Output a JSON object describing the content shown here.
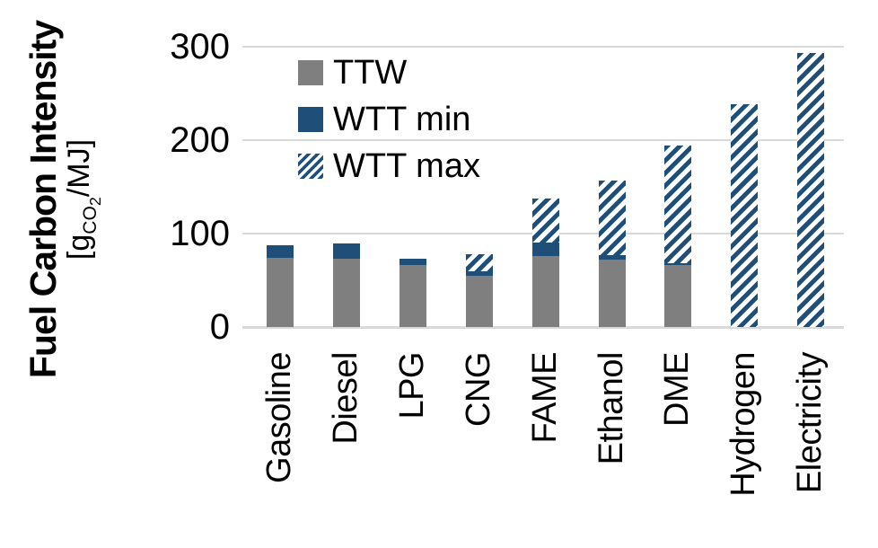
{
  "y_axis": {
    "title": "Fuel Carbon Intensity",
    "units_prefix": "[g",
    "units_sub": "CO",
    "units_sub2": "2",
    "units_suffix": "/MJ]"
  },
  "legend": {
    "items": [
      {
        "label": "TTW",
        "swatch": "solid-gray",
        "swatch_icon": "gray-square-icon"
      },
      {
        "label": "WTT min",
        "swatch": "solid-navy",
        "swatch_icon": "navy-square-icon"
      },
      {
        "label": "WTT max",
        "swatch": "hatched-navy",
        "swatch_icon": "navy-hatched-square-icon"
      }
    ]
  },
  "colors": {
    "ttw_gray": "#7F7F7F",
    "wtt_navy": "#1F4E79",
    "gridline": "#D9D9D9",
    "background": "#FFFFFF",
    "text": "#000000"
  },
  "chart_data": {
    "type": "bar",
    "stacked": true,
    "title": "",
    "xlabel": "",
    "ylabel": "Fuel Carbon Intensity [gCO2/MJ]",
    "ylim": [
      0,
      300
    ],
    "yticks": [
      0,
      100,
      200,
      300
    ],
    "grid": true,
    "legend_position": "upper-left",
    "categories": [
      "Gasoline",
      "Diesel",
      "LPG",
      "CNG",
      "FAME",
      "Ethanol",
      "DME",
      "Hydrogen",
      "Electricity"
    ],
    "series": [
      {
        "name": "TTW",
        "values": [
          74,
          73,
          66,
          55,
          76,
          72,
          66,
          0,
          0
        ]
      },
      {
        "name": "WTT min",
        "values": [
          14,
          16,
          7,
          5,
          14,
          5,
          2,
          0,
          0
        ]
      },
      {
        "name": "WTT max",
        "values": [
          0,
          0,
          0,
          18,
          48,
          80,
          126,
          238,
          293
        ]
      }
    ],
    "stack_totals": [
      88,
      89,
      73,
      78,
      138,
      157,
      194,
      238,
      293
    ],
    "note": "WTT max is the hatched extension stacked above TTW + WTT min; Hydrogen and Electricity bars are entirely WTT max hatched."
  }
}
